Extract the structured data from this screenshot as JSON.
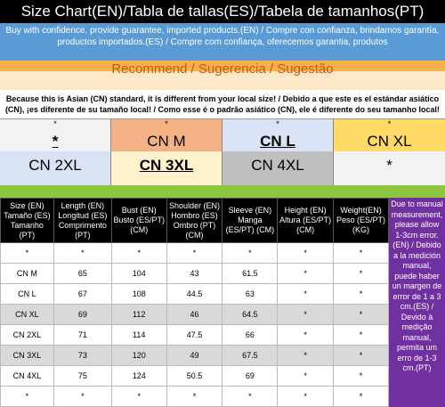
{
  "title": "Size Chart(EN)/Tabla de tallas(ES)/Tabela de tamanhos(PT)",
  "promo": "Buy with confidence, provide guarantee, imported products.(EN) / Compre con confianza, brindamos garantía, productos importados.(ES) / Compre com confiança, oferecemos garantia, produtos",
  "recommend": "Recommend / Sugerencia / Sugestão",
  "notice": "Because this is Asian (CN) standard, it is different from your local size! / Debido a que este es el estándar asiático (CN), ¡es diferente de su tamaño local! / Como esse é o padrão asiático (CN), ele é diferente do seu tamanho local!",
  "sizes_row1": [
    {
      "label": "*",
      "dot": "*"
    },
    {
      "label": "CN M",
      "dot": "*"
    },
    {
      "label": "CN L",
      "dot": "*"
    },
    {
      "label": "CN XL",
      "dot": "*"
    }
  ],
  "sizes_row2": [
    {
      "label": "CN 2XL"
    },
    {
      "label": "CN 3XL"
    },
    {
      "label": "CN 4XL"
    },
    {
      "label": "*"
    }
  ],
  "table": {
    "headers": [
      "Size (EN) Tamaño (ES) Tamanho (PT)",
      "Length (EN) Longitud (ES) Comprimento (PT)",
      "Bust (EN) Busto (ES/PT) (CM)",
      "Shoulder (EN) Hombro (ES) Ombro (PT) (CM)",
      "Sleeve (EN) Manga (ES/PT) (CM)",
      "Height (EN) Altura (ES/PT) (CM)",
      "Weight(EN) Peso (ES/PT) (KG)"
    ],
    "rows": [
      [
        "*",
        "*",
        "*",
        "*",
        "*",
        "*",
        "*"
      ],
      [
        "CN M",
        "65",
        "104",
        "43",
        "61.5",
        "*",
        "*"
      ],
      [
        "CN L",
        "67",
        "108",
        "44.5",
        "63",
        "*",
        "*"
      ],
      [
        "CN XL",
        "69",
        "112",
        "46",
        "64.5",
        "*",
        "*"
      ],
      [
        "CN 2XL",
        "71",
        "114",
        "47.5",
        "66",
        "*",
        "*"
      ],
      [
        "CN 3XL",
        "73",
        "120",
        "49",
        "67.5",
        "*",
        "*"
      ],
      [
        "CN 4XL",
        "75",
        "124",
        "50.5",
        "69",
        "*",
        "*"
      ],
      [
        "*",
        "*",
        "*",
        "*",
        "*",
        "*",
        "*"
      ]
    ]
  },
  "side_note": "Due to manual measurement, please allow 1-3cm error.(EN) / Debido a la medición manual, puede haber un margen de error de 1 a 3 cm.(ES) / Devido à medição manual, permita um erro de 1-3 cm.(PT)",
  "colors": {
    "title_bg": "#000000",
    "promo_bg": "#5b9bd5",
    "recommend_text": "#c55a11",
    "side_note_bg": "#7030a0",
    "green_band": "#8dc63f"
  }
}
